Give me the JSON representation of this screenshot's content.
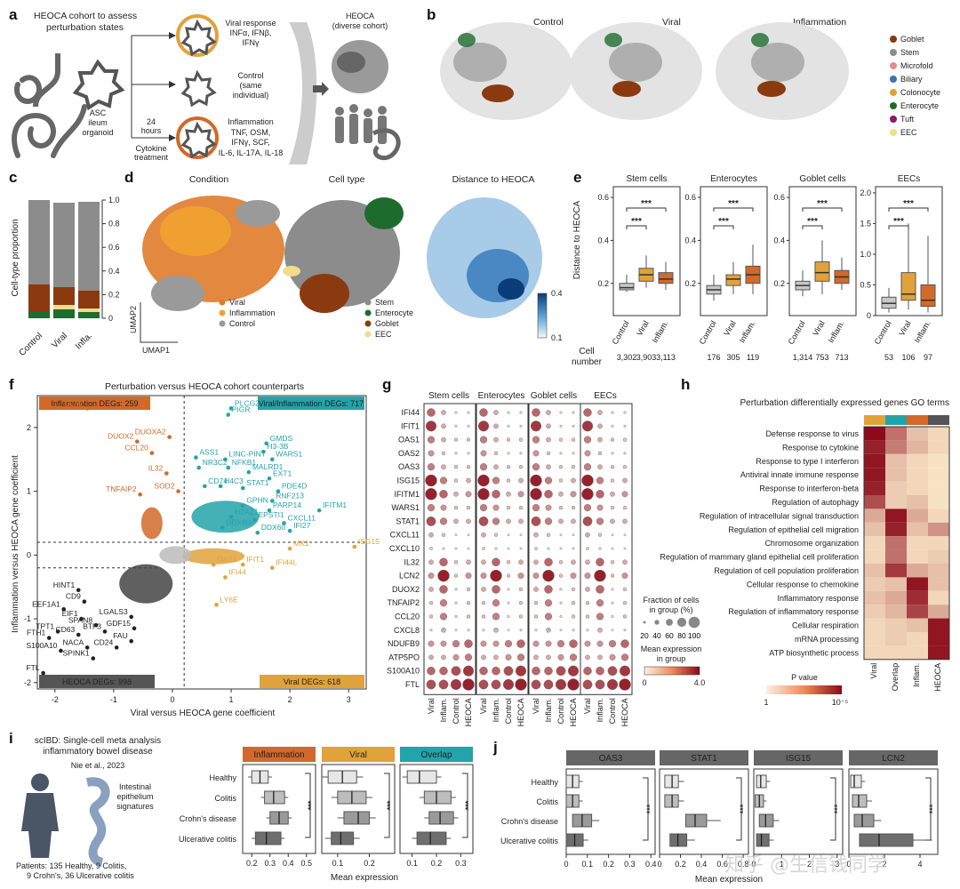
{
  "panel_letters": [
    "a",
    "b",
    "c",
    "d",
    "e",
    "f",
    "g",
    "h",
    "i",
    "j"
  ],
  "a": {
    "title_l1": "HEOCA cohort to assess",
    "title_l2": "perturbation states",
    "organoid_l1": "ASC",
    "organoid_l2": "ileum",
    "organoid_l3": "organoid",
    "hours_l1": "24",
    "hours_l2": "hours",
    "treat_l1": "Cytokine",
    "treat_l2": "treatment",
    "viral_l1": "Viral response",
    "viral_l2": "INFα, IFNβ,",
    "viral_l3": "IFNγ",
    "control_l1": "Control",
    "control_l2": "(same",
    "control_l3": "individual)",
    "infl_l1": "Inflammation",
    "infl_l2": "TNF, OSM,",
    "infl_l3": "IFNγ, SCF,",
    "infl_l4": "IL-6, IL-17A, IL-18",
    "heoca_l1": "HEOCA",
    "heoca_l2": "(diverse cohort)"
  },
  "b": {
    "titles": [
      "Control",
      "Viral",
      "Inflammation"
    ],
    "legend": [
      {
        "label": "Goblet",
        "color": "#8B3A0F"
      },
      {
        "label": "Stem",
        "color": "#8c8c8c"
      },
      {
        "label": "Microfold",
        "color": "#E68C8C"
      },
      {
        "label": "Biliary",
        "color": "#3F6FB5"
      },
      {
        "label": "Colonocyte",
        "color": "#E3A03A"
      },
      {
        "label": "Enterocyte",
        "color": "#1E6B2E"
      },
      {
        "label": "Tuft",
        "color": "#8B1A6B"
      },
      {
        "label": "EEC",
        "color": "#F2DC8C"
      }
    ]
  },
  "c": {
    "ylabel": "Cell-type proportion",
    "ticks": [
      "0",
      "0.2",
      "0.4",
      "0.6",
      "0.8",
      "1.0"
    ],
    "categories": [
      "Control",
      "Viral",
      "Infla."
    ]
  },
  "d": {
    "titles": [
      "Condition",
      "Cell type",
      "Distance to HEOCA"
    ],
    "legend1": [
      {
        "label": "Viral",
        "color": "#E07B2A"
      },
      {
        "label": "Inflammation",
        "color": "#F0A030"
      },
      {
        "label": "Control",
        "color": "#9a9a9a"
      }
    ],
    "legend2": [
      {
        "label": "Stem",
        "color": "#8c8c8c"
      },
      {
        "label": "Enterocyte",
        "color": "#1E6B2E"
      },
      {
        "label": "Goblet",
        "color": "#8B3A0F"
      },
      {
        "label": "EEC",
        "color": "#F2DC8C"
      }
    ],
    "umap1": "UMAP1",
    "umap2": "UMAP2",
    "cb_hi": "0.4",
    "cb_lo": "0.1"
  },
  "e": {
    "ylabel": "Distance to HEOCA",
    "cell_label_l1": "Cell",
    "cell_label_l2": "number",
    "sig": "***",
    "xcats": [
      "Control",
      "Viral",
      "Inflam."
    ],
    "panels": [
      {
        "title": "Stem cells",
        "ticks": [
          "0.2",
          "0.4",
          "0.6"
        ],
        "counts": [
          "3,302",
          "3,903",
          "3,113"
        ]
      },
      {
        "title": "Enterocytes",
        "ticks": [
          "0.2",
          "0.4",
          "0.6"
        ],
        "counts": [
          "176",
          "305",
          "119"
        ]
      },
      {
        "title": "Goblet cells",
        "ticks": [
          "0.2",
          "0.4",
          "0.6"
        ],
        "counts": [
          "1,314",
          "753",
          "713"
        ]
      },
      {
        "title": "EECs",
        "ticks": [
          "0",
          "0.5",
          "1.0",
          "1.5",
          "2.0"
        ],
        "counts": [
          "53",
          "106",
          "97"
        ]
      }
    ]
  },
  "f": {
    "title": "Perturbation versus HEOCA cohort counterparts",
    "xlabel": "Viral versus HEOCA gene coefficient",
    "ylabel": "Inflammation versus HEOCA gene coefficient",
    "xticks": [
      "-2",
      "-1",
      "0",
      "1",
      "2",
      "3"
    ],
    "yticks": [
      "2",
      "1",
      "0",
      "-1",
      "-2"
    ],
    "boxes": {
      "infl": {
        "label": "Inflammation DEGs: 259",
        "color": "#D2692A"
      },
      "both": {
        "label": "Viral/Inflammation DEGs: 717",
        "color": "#23A3AA"
      },
      "heoca": {
        "label": "HEOCA DEGs: 998",
        "color": "#555555"
      },
      "viral": {
        "label": "Viral DEGs: 618",
        "color": "#E1A23A"
      }
    },
    "chart_data": {
      "type": "scatter",
      "title": "Perturbation versus HEOCA cohort counterparts",
      "xlabel": "Viral versus HEOCA gene coefficient",
      "ylabel": "Inflammation versus HEOCA gene coefficient",
      "xlim": [
        -2.3,
        3.3
      ],
      "ylim": [
        -2.1,
        2.5
      ],
      "labeled_genes": [
        {
          "gene": "LCN2",
          "x": -1.45,
          "y": 2.3,
          "group": "inflammation"
        },
        {
          "gene": "DUOXA2",
          "x": -0.05,
          "y": 1.85,
          "group": "inflammation"
        },
        {
          "gene": "DUOX2",
          "x": -0.6,
          "y": 1.78,
          "group": "inflammation"
        },
        {
          "gene": "CCL20",
          "x": -0.35,
          "y": 1.6,
          "group": "inflammation"
        },
        {
          "gene": "IL32",
          "x": -0.1,
          "y": 1.28,
          "group": "inflammation"
        },
        {
          "gene": "SOD2",
          "x": 0.1,
          "y": 1.0,
          "group": "inflammation"
        },
        {
          "gene": "TNFAIP2",
          "x": -0.55,
          "y": 0.95,
          "group": "inflammation"
        },
        {
          "gene": "PLCG2",
          "x": 1.0,
          "y": 2.3,
          "group": "both"
        },
        {
          "gene": "PIGR",
          "x": 0.95,
          "y": 2.2,
          "group": "both"
        },
        {
          "gene": "GMDS",
          "x": 1.6,
          "y": 1.75,
          "group": "both"
        },
        {
          "gene": "H3-3B",
          "x": 1.55,
          "y": 1.62,
          "group": "both"
        },
        {
          "gene": "WARS1",
          "x": 1.7,
          "y": 1.5,
          "group": "both"
        },
        {
          "gene": "ASS1",
          "x": 0.4,
          "y": 1.53,
          "group": "both"
        },
        {
          "gene": "LINC-PINT",
          "x": 0.9,
          "y": 1.5,
          "group": "both"
        },
        {
          "gene": "NR3C2",
          "x": 0.45,
          "y": 1.37,
          "group": "both"
        },
        {
          "gene": "NFKB1",
          "x": 0.95,
          "y": 1.37,
          "group": "both"
        },
        {
          "gene": "MALRD1",
          "x": 1.3,
          "y": 1.3,
          "group": "both"
        },
        {
          "gene": "EXT1",
          "x": 1.65,
          "y": 1.2,
          "group": "both"
        },
        {
          "gene": "CD74",
          "x": 0.55,
          "y": 1.08,
          "group": "both"
        },
        {
          "gene": "H4C3",
          "x": 0.82,
          "y": 1.08,
          "group": "both"
        },
        {
          "gene": "STAT1",
          "x": 1.2,
          "y": 1.05,
          "group": "both"
        },
        {
          "gene": "PDE4D",
          "x": 1.8,
          "y": 1.0,
          "group": "both"
        },
        {
          "gene": "RNF213",
          "x": 1.7,
          "y": 0.85,
          "group": "both"
        },
        {
          "gene": "GPHN",
          "x": 1.2,
          "y": 0.78,
          "group": "both"
        },
        {
          "gene": "PARP14",
          "x": 1.65,
          "y": 0.7,
          "group": "both"
        },
        {
          "gene": "IFITM1",
          "x": 2.5,
          "y": 0.7,
          "group": "both"
        },
        {
          "gene": "H2AZ1",
          "x": 1.0,
          "y": 0.6,
          "group": "both"
        },
        {
          "gene": "EPSTI1",
          "x": 1.4,
          "y": 0.55,
          "group": "both"
        },
        {
          "gene": "CXCL11",
          "x": 1.9,
          "y": 0.5,
          "group": "both"
        },
        {
          "gene": "IFI27",
          "x": 2.0,
          "y": 0.38,
          "group": "both"
        },
        {
          "gene": "DDX60L",
          "x": 0.85,
          "y": 0.43,
          "group": "both"
        },
        {
          "gene": "DDX60",
          "x": 1.45,
          "y": 0.35,
          "group": "both"
        },
        {
          "gene": "ISG15",
          "x": 3.1,
          "y": 0.13,
          "group": "viral"
        },
        {
          "gene": "MX1",
          "x": 2.0,
          "y": 0.1,
          "group": "viral"
        },
        {
          "gene": "IFI44L",
          "x": 1.7,
          "y": -0.2,
          "group": "viral"
        },
        {
          "gene": "IFI44",
          "x": 0.9,
          "y": -0.35,
          "group": "viral"
        },
        {
          "gene": "IFIT1",
          "x": 1.2,
          "y": -0.15,
          "group": "viral"
        },
        {
          "gene": "OAS1",
          "x": 0.7,
          "y": -0.15,
          "group": "viral"
        },
        {
          "gene": "LY6E",
          "x": 0.75,
          "y": -0.78,
          "group": "viral"
        },
        {
          "gene": "HINT1",
          "x": -1.6,
          "y": -0.55,
          "group": "heoca"
        },
        {
          "gene": "CD9",
          "x": -1.5,
          "y": -0.73,
          "group": "heoca"
        },
        {
          "gene": "EEF1A1",
          "x": -1.85,
          "y": -0.85,
          "group": "heoca"
        },
        {
          "gene": "EIF1",
          "x": -1.55,
          "y": -1.0,
          "group": "heoca"
        },
        {
          "gene": "SPAN8",
          "x": -1.3,
          "y": -1.1,
          "group": "heoca"
        },
        {
          "gene": "BTF3",
          "x": -1.15,
          "y": -1.2,
          "group": "heoca"
        },
        {
          "gene": "TPT1",
          "x": -1.95,
          "y": -1.2,
          "group": "heoca"
        },
        {
          "gene": "CD63",
          "x": -1.6,
          "y": -1.25,
          "group": "heoca"
        },
        {
          "gene": "FTH1",
          "x": -2.1,
          "y": -1.3,
          "group": "heoca"
        },
        {
          "gene": "S100A10",
          "x": -1.9,
          "y": -1.5,
          "group": "heoca"
        },
        {
          "gene": "NACA",
          "x": -1.45,
          "y": -1.45,
          "group": "heoca"
        },
        {
          "gene": "SPINK1",
          "x": -1.35,
          "y": -1.62,
          "group": "heoca"
        },
        {
          "gene": "FTL",
          "x": -2.2,
          "y": -1.85,
          "group": "heoca"
        },
        {
          "gene": "LGALS3",
          "x": -0.7,
          "y": -0.97,
          "group": "heoca"
        },
        {
          "gene": "GDF15",
          "x": -0.65,
          "y": -1.15,
          "group": "heoca"
        },
        {
          "gene": "FAU",
          "x": -0.7,
          "y": -1.35,
          "group": "heoca"
        },
        {
          "gene": "CD24",
          "x": -0.95,
          "y": -1.45,
          "group": "heoca"
        }
      ]
    }
  },
  "g": {
    "groups": [
      "Stem cells",
      "Enterocytes",
      "Goblet cells",
      "EECs"
    ],
    "conditions": [
      "Viral",
      "Inflam.",
      "Control",
      "HEOCA"
    ],
    "genes": [
      "IFI44",
      "IFIT1",
      "OAS1",
      "OAS2",
      "OAS3",
      "ISG15",
      "IFITM1",
      "WARS1",
      "STAT1",
      "CXCL11",
      "CXCL10",
      "IL32",
      "LCN2",
      "DUOX2",
      "TNFAIP2",
      "CCL20",
      "CXCL8",
      "NDUFB9",
      "ATP5PO",
      "S100A10",
      "FTL"
    ],
    "size_title_l1": "Fraction of cells",
    "size_title_l2": "in group (%)",
    "size_labels": [
      "20",
      "40",
      "60",
      "80",
      "100"
    ],
    "color_title_l1": "Mean expression",
    "color_title_l2": "in group",
    "color_lo": "0",
    "color_hi": "4.0"
  },
  "h": {
    "title": "Perturbation differentially expressed genes GO terms",
    "columns": [
      "Viral",
      "Overlap",
      "Inflam.",
      "HEOCA"
    ],
    "col_colors": [
      "#E1A23A",
      "#23A3AA",
      "#D2692A",
      "#555555"
    ],
    "terms": [
      "Defense response to virus",
      "Response to cytokine",
      "Response to type I interferon",
      "Antiviral innate immune response",
      "Response to interferon-beta",
      "Regulation of autophagy",
      "Regulation of intracellular signal transduction",
      "Regulation of epithelial cell migration",
      "Chromosome organization",
      "Regulation of mammary gland epithelial cell proliferation",
      "Regulation of cell population proliferation",
      "Cellular response to chemokine",
      "Inflammatory response",
      "Regulation of inflammatory response",
      "Cellular respiration",
      "mRNA processing",
      "ATP biosynthetic process"
    ],
    "cb_title": "P value",
    "cb_lo": "1",
    "cb_hi": "10⁻⁵"
  },
  "i": {
    "title_l1": "scIBD: Single-cell meta analysis",
    "title_l2": "inflammatory bowel disease",
    "cite": "Nie et al., 2023",
    "sig_l1": "Intestinal",
    "sig_l2": "epithelium",
    "sig_l3": "signatures",
    "patients_l1": "Patients: 135 Healthy, 9 Colitis,",
    "patients_l2": "9 Crohn's, 36 Ulcerative colitis",
    "rows": [
      "Healthy",
      "Colitis",
      "Crohn's disease",
      "Ulcerative colitis"
    ],
    "xlabel": "Mean expression",
    "panels": [
      {
        "title": "Inflammation",
        "color": "#D2692A",
        "ticks": [
          "0.2",
          "0.3",
          "0.4",
          "0.5"
        ]
      },
      {
        "title": "Viral",
        "color": "#E1A23A",
        "ticks": [
          "0.1",
          "0.2"
        ]
      },
      {
        "title": "Overlap",
        "color": "#23A3AA",
        "ticks": [
          "0.1",
          "0.2",
          "0.3"
        ]
      }
    ]
  },
  "j": {
    "rows": [
      "Healthy",
      "Colitis",
      "Crohn's disease",
      "Ulcerative colitis"
    ],
    "xlabel": "Mean expression",
    "panels": [
      {
        "title": "OAS3",
        "ticks": [
          "0",
          "0.1",
          "0.2",
          "0.3",
          "0.4"
        ]
      },
      {
        "title": "STAT1",
        "ticks": [
          "0",
          "0.2",
          "0.4",
          "0.6",
          "0.8"
        ]
      },
      {
        "title": "ISG15",
        "ticks": [
          "0",
          "1",
          "2",
          "3"
        ]
      },
      {
        "title": "LCN2",
        "ticks": [
          "0",
          "2",
          "4"
        ]
      }
    ]
  },
  "watermark": "知乎 @生信钱同学"
}
